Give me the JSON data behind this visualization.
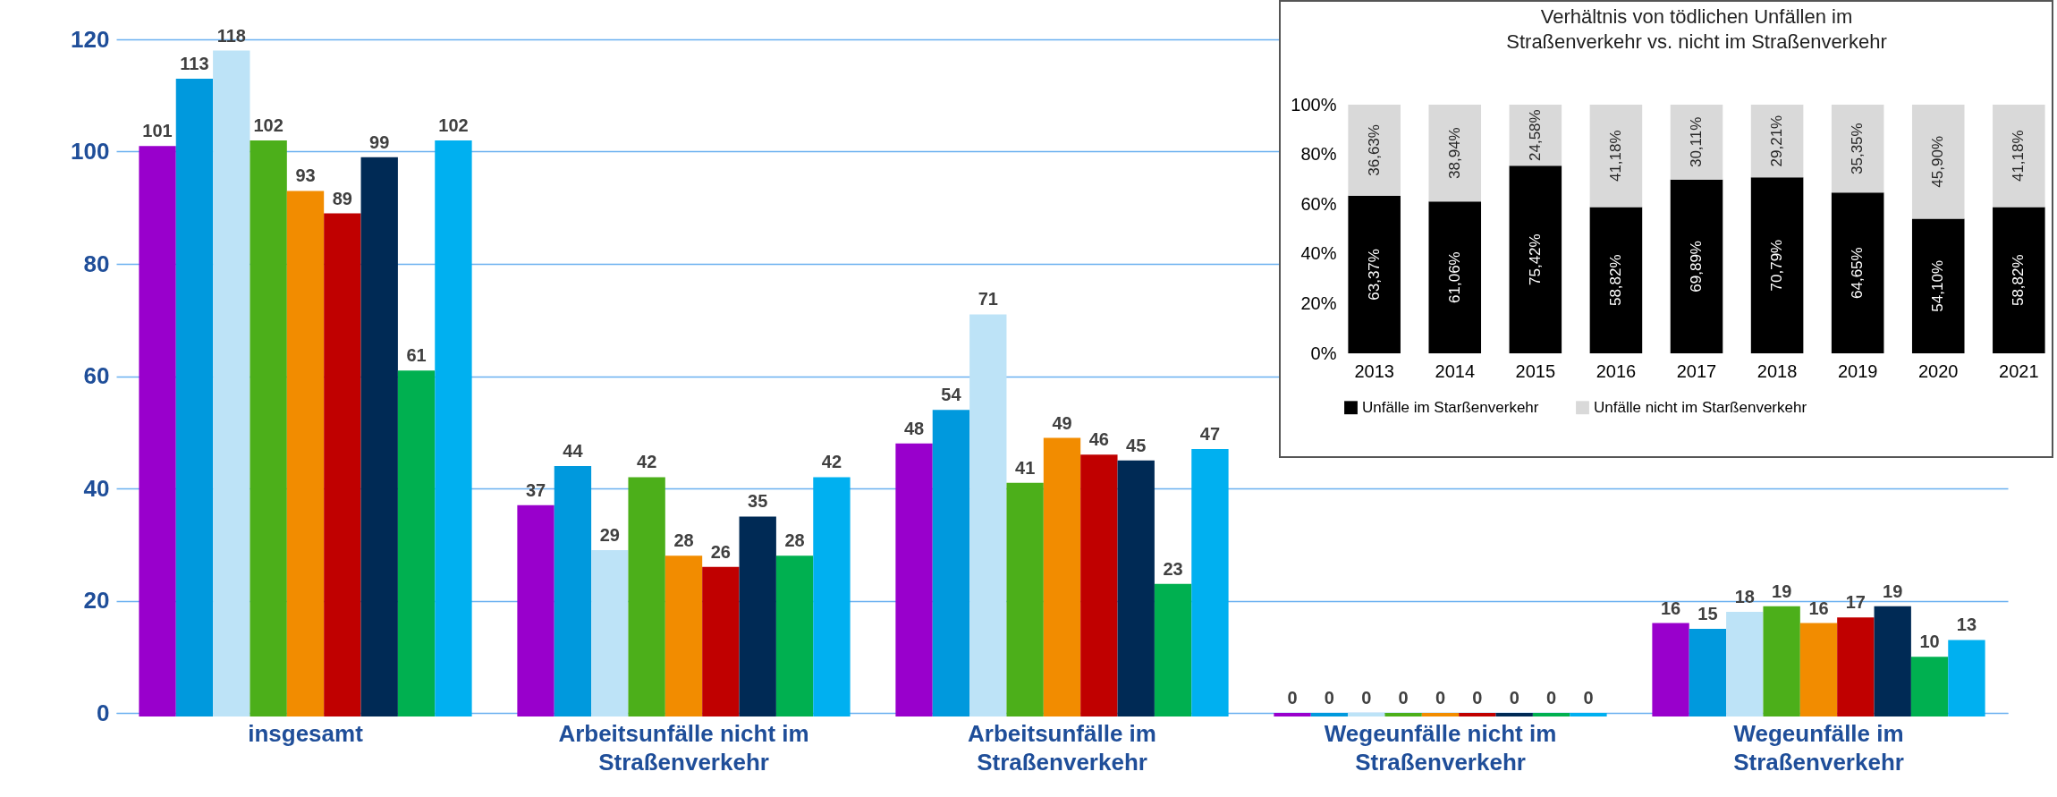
{
  "chart_data": [
    {
      "type": "bar",
      "categories": [
        "insgesamt",
        "Arbeitsunfälle nicht im Straßenverkehr",
        "Arbeitsunfälle im Straßenverkehr",
        "Wegeunfälle nicht im Straßenverkehr",
        "Wegeunfälle im Straßenverkehr"
      ],
      "series": [
        {
          "color": "#9900cc",
          "values": [
            101,
            37,
            48,
            0,
            16
          ]
        },
        {
          "color": "#0099dd",
          "values": [
            113,
            44,
            54,
            0,
            15
          ]
        },
        {
          "color": "#bde3f7",
          "values": [
            118,
            29,
            71,
            0,
            18
          ]
        },
        {
          "color": "#4caf1a",
          "values": [
            102,
            42,
            41,
            0,
            19
          ]
        },
        {
          "color": "#f28c00",
          "values": [
            93,
            28,
            49,
            0,
            16
          ]
        },
        {
          "color": "#c00000",
          "values": [
            89,
            26,
            46,
            0,
            17
          ]
        },
        {
          "color": "#002a55",
          "values": [
            99,
            35,
            45,
            0,
            19
          ]
        },
        {
          "color": "#00b050",
          "values": [
            61,
            28,
            23,
            0,
            10
          ]
        },
        {
          "color": "#00b0f0",
          "values": [
            102,
            42,
            47,
            0,
            13
          ]
        }
      ],
      "ylim": [
        0,
        120
      ],
      "yticks": [
        0,
        20,
        40,
        60,
        80,
        100,
        120
      ],
      "grid": "y",
      "data_labels": true
    },
    {
      "type": "bar",
      "title": "Verhältnis von tödlichen Unfällen im Straßenverkehr vs. nicht im Straßenverkehr",
      "stacked": true,
      "categories": [
        "2013",
        "2014",
        "2015",
        "2016",
        "2017",
        "2018",
        "2019",
        "2020",
        "2021"
      ],
      "series": [
        {
          "name": "Unfälle im Starßenverkehr",
          "color": "#000000",
          "values": [
            63.37,
            61.06,
            75.42,
            58.82,
            69.89,
            70.79,
            64.65,
            54.1,
            58.82
          ],
          "value_labels": [
            "63,37%",
            "61,06%",
            "75,42%",
            "58,82%",
            "69,89%",
            "70,79%",
            "64,65%",
            "54,10%",
            "58,82%"
          ]
        },
        {
          "name": "Unfälle nicht im Starßenverkehr",
          "color": "#d9d9d9",
          "values": [
            36.63,
            38.94,
            24.58,
            41.18,
            30.11,
            29.21,
            35.35,
            45.9,
            41.18
          ],
          "value_labels": [
            "36,63%",
            "38,94%",
            "24,58%",
            "41,18%",
            "30,11%",
            "29,21%",
            "35,35%",
            "45,90%",
            "41,18%"
          ]
        }
      ],
      "ylim": [
        0,
        100
      ],
      "yticks": [
        {
          "value": 0,
          "label": "0%"
        },
        {
          "value": 20,
          "label": "20%"
        },
        {
          "value": 40,
          "label": "40%"
        },
        {
          "value": 60,
          "label": "60%"
        },
        {
          "value": 80,
          "label": "80%"
        },
        {
          "value": 100,
          "label": "100%"
        }
      ],
      "legend": "bottom"
    }
  ]
}
